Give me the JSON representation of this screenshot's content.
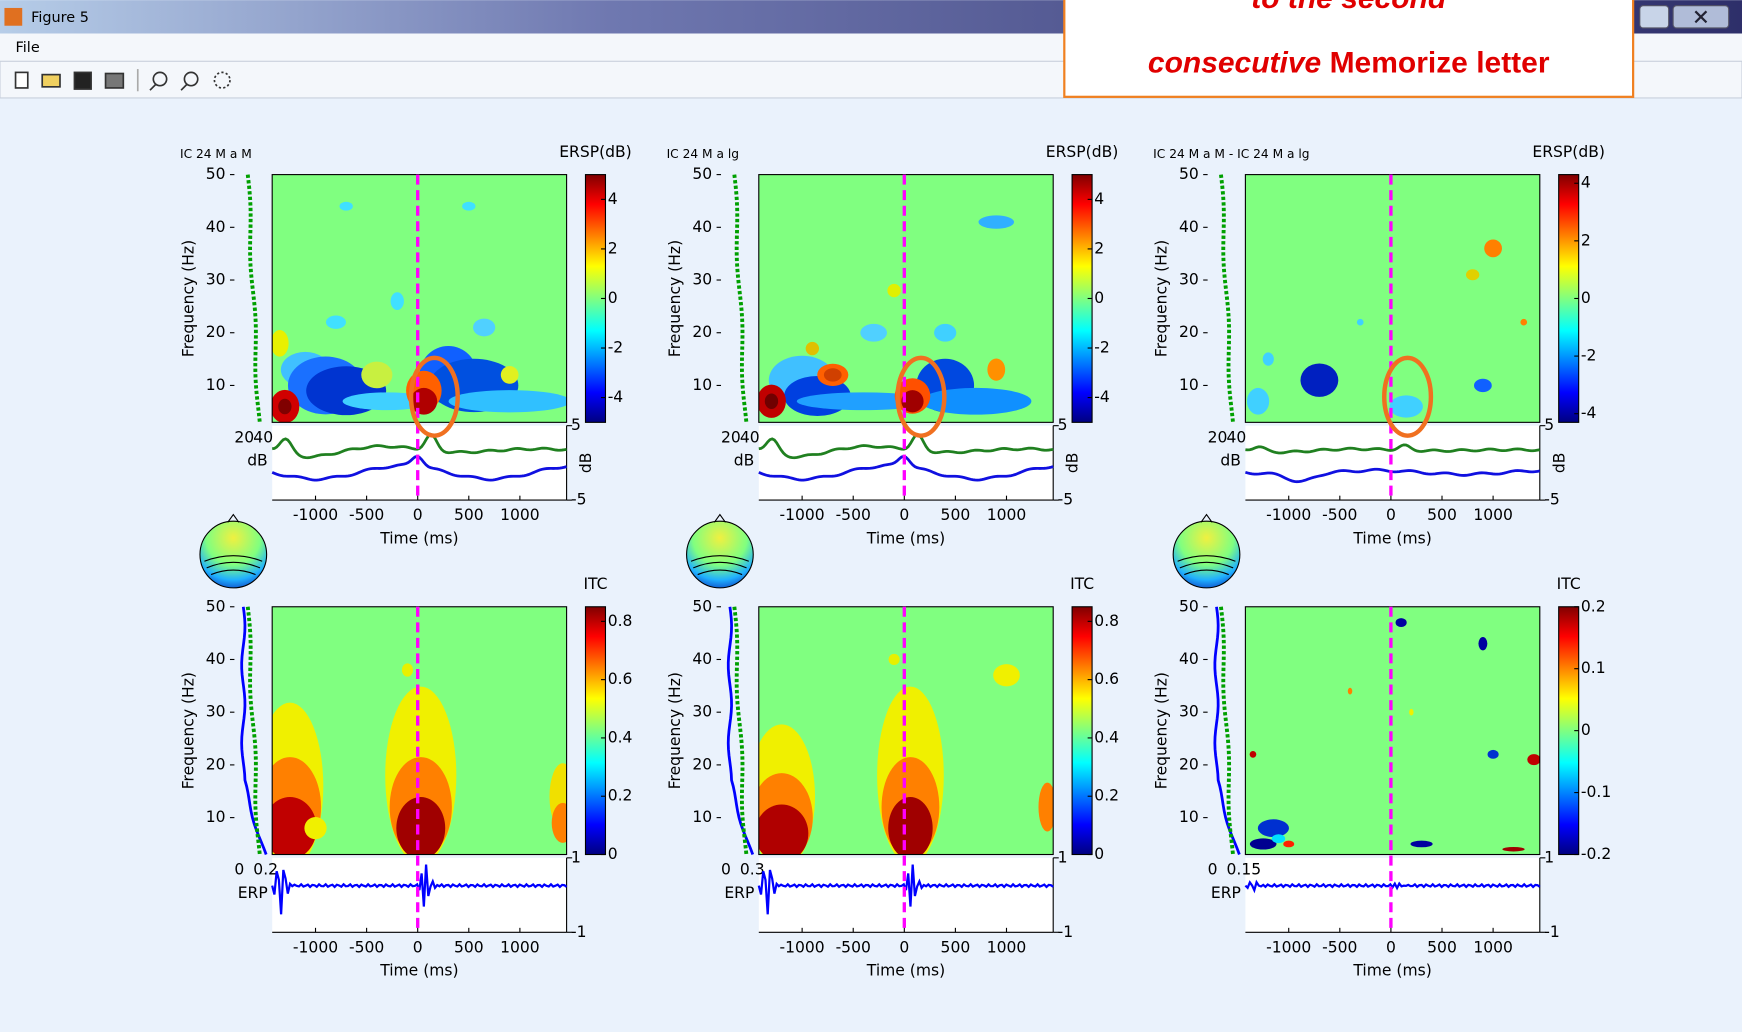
{
  "window": {
    "title": "Figure 5",
    "menu": [
      "File"
    ]
  },
  "annotation": {
    "line1": "to the second",
    "emphasis": "consecutive",
    "rest": "Memorize letter"
  },
  "panels": [
    {
      "title": "IC 24 M a M",
      "cbar_label": "ERSP(dB)",
      "cbar_lim": [
        -5,
        5
      ],
      "cbar_ticks": [
        4,
        2,
        0,
        -2,
        -4
      ],
      "ylabel": "Frequency (Hz)",
      "ylim": [
        3,
        50
      ],
      "yticks": [
        10,
        20,
        30,
        40,
        50
      ],
      "xlabel": "Time (ms)",
      "xlim": [
        -1424,
        1457
      ],
      "xticks": [
        -1000,
        -500,
        0,
        500,
        1000
      ],
      "side_ticks": [
        20,
        40
      ],
      "side_unit": "dB",
      "trace_ticks": [
        5,
        -5
      ],
      "trace_unit": "dB"
    },
    {
      "title": "IC 24 M a lg",
      "cbar_label": "ERSP(dB)",
      "cbar_lim": [
        -5,
        5
      ],
      "cbar_ticks": [
        4,
        2,
        0,
        -2,
        -4
      ],
      "ylabel": "Frequency (Hz)",
      "ylim": [
        3,
        50
      ],
      "yticks": [
        10,
        20,
        30,
        40,
        50
      ],
      "xlabel": "Time (ms)",
      "xlim": [
        -1424,
        1457
      ],
      "xticks": [
        -1000,
        -500,
        0,
        500,
        1000
      ],
      "side_ticks": [
        20,
        40
      ],
      "side_unit": "dB",
      "trace_ticks": [
        5,
        -5
      ],
      "trace_unit": "dB"
    },
    {
      "title": "IC 24 M a M - IC 24 M a lg",
      "cbar_label": "ERSP(dB)",
      "cbar_lim": [
        -4.3,
        4.3
      ],
      "cbar_ticks": [
        4,
        2,
        0,
        -2,
        -4
      ],
      "ylabel": "Frequency (Hz)",
      "ylim": [
        3,
        50
      ],
      "yticks": [
        10,
        20,
        30,
        40,
        50
      ],
      "xlabel": "Time (ms)",
      "xlim": [
        -1424,
        1457
      ],
      "xticks": [
        -1000,
        -500,
        0,
        500,
        1000
      ],
      "side_ticks": [
        20,
        40
      ],
      "side_unit": "dB",
      "trace_ticks": [
        5,
        -5
      ],
      "trace_unit": "dB"
    },
    {
      "cbar_label": "ITC",
      "cbar_lim": [
        0,
        0.85
      ],
      "cbar_ticks": [
        0.8,
        0.6,
        0.4,
        0.2,
        0
      ],
      "ylabel": "Frequency (Hz)",
      "ylim": [
        3,
        50
      ],
      "yticks": [
        10,
        20,
        30,
        40,
        50
      ],
      "xlabel": "Time (ms)",
      "xlim": [
        -1424,
        1457
      ],
      "xticks": [
        -1000,
        -500,
        0,
        500,
        1000
      ],
      "side_ticks": [
        0,
        0.2
      ],
      "side_unit": "ERP",
      "trace_ticks": [
        1,
        -1
      ]
    },
    {
      "cbar_label": "ITC",
      "cbar_lim": [
        0,
        0.85
      ],
      "cbar_ticks": [
        0.8,
        0.6,
        0.4,
        0.2,
        0
      ],
      "ylabel": "Frequency (Hz)",
      "ylim": [
        3,
        50
      ],
      "yticks": [
        10,
        20,
        30,
        40,
        50
      ],
      "xlabel": "Time (ms)",
      "xlim": [
        -1424,
        1457
      ],
      "xticks": [
        -1000,
        -500,
        0,
        500,
        1000
      ],
      "side_ticks": [
        0,
        0.3
      ],
      "side_unit": "ERP",
      "trace_ticks": [
        1,
        -1
      ]
    },
    {
      "cbar_label": "ITC",
      "cbar_lim": [
        -0.2,
        0.2
      ],
      "cbar_ticks": [
        0.2,
        0.1,
        0,
        -0.1,
        -0.2
      ],
      "ylabel": "Frequency (Hz)",
      "ylim": [
        3,
        50
      ],
      "yticks": [
        10,
        20,
        30,
        40,
        50
      ],
      "xlabel": "Time (ms)",
      "xlim": [
        -1424,
        1457
      ],
      "xticks": [
        -1000,
        -500,
        0,
        500,
        1000
      ],
      "side_ticks": [
        0,
        0.15
      ],
      "side_unit": "ERP",
      "trace_ticks": [
        1,
        -1
      ]
    }
  ]
}
